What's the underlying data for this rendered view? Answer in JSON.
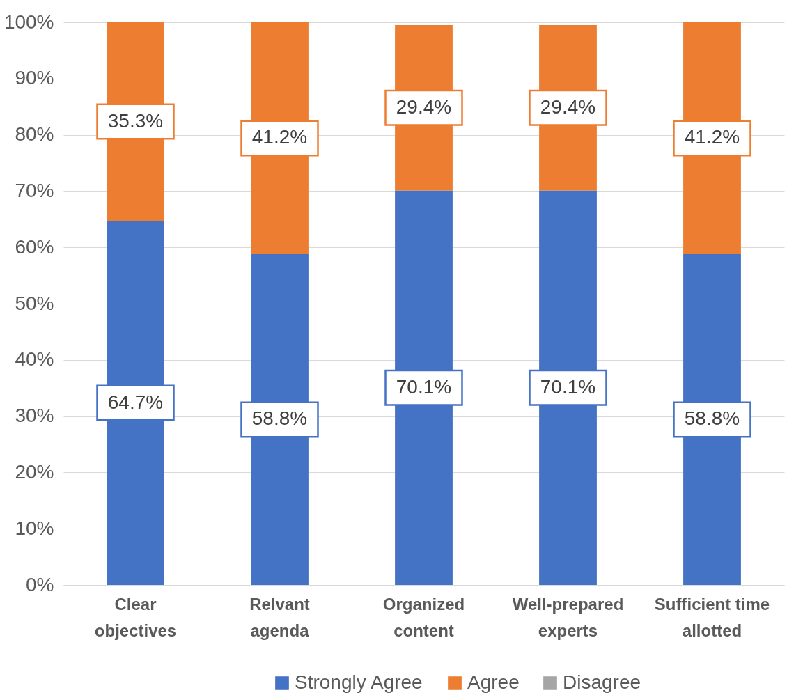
{
  "chart_data": {
    "type": "bar",
    "stacked": true,
    "categories": [
      "Clear objectives",
      "Relvant agenda",
      "Organized content",
      "Well-prepared experts",
      "Sufficient time allotted"
    ],
    "series": [
      {
        "name": "Strongly Agree",
        "color": "#4472c4",
        "values": [
          64.7,
          58.8,
          70.1,
          70.1,
          58.8
        ],
        "value_labels": [
          "64.7%",
          "58.8%",
          "70.1%",
          "70.1%",
          "58.8%"
        ]
      },
      {
        "name": "Agree",
        "color": "#ed7d31",
        "values": [
          35.3,
          41.2,
          29.4,
          29.4,
          41.2
        ],
        "value_labels": [
          "35.3%",
          "41.2%",
          "29.4%",
          "29.4%",
          "41.2%"
        ]
      },
      {
        "name": "Disagree",
        "color": "#a5a5a5",
        "values": [
          null,
          null,
          null,
          null,
          null
        ]
      }
    ],
    "ylim": [
      0,
      100
    ],
    "yticks": [
      {
        "value": 0,
        "label": "0%"
      },
      {
        "value": 10,
        "label": "10%"
      },
      {
        "value": 20,
        "label": "20%"
      },
      {
        "value": 30,
        "label": "30%"
      },
      {
        "value": 40,
        "label": "40%"
      },
      {
        "value": 50,
        "label": "50%"
      },
      {
        "value": 60,
        "label": "60%"
      },
      {
        "value": 70,
        "label": "70%"
      },
      {
        "value": 80,
        "label": "80%"
      },
      {
        "value": 90,
        "label": "90%"
      },
      {
        "value": 100,
        "label": "100%"
      }
    ],
    "grid": "y",
    "legend": "bottom"
  }
}
